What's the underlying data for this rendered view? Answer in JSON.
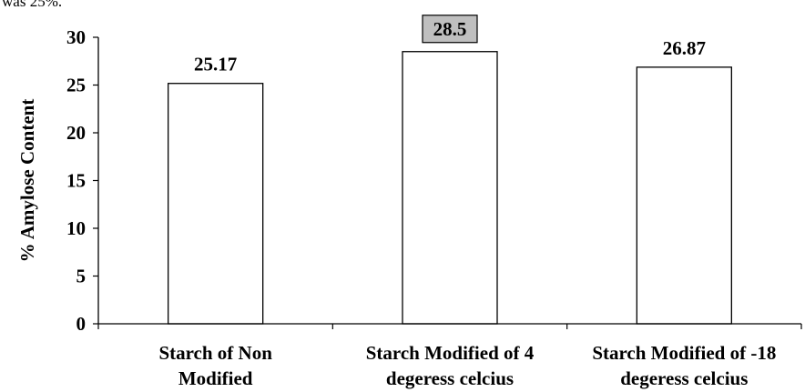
{
  "header_fragment": "was 25%.",
  "chart_data": {
    "type": "bar",
    "title": "",
    "xlabel": "",
    "ylabel": "% Amylose Content",
    "ylim": [
      0,
      30
    ],
    "yticks": [
      0,
      5,
      10,
      15,
      20,
      25,
      30
    ],
    "grid": false,
    "categories": [
      [
        "Starch of Non",
        "Modified"
      ],
      [
        "Starch Modified of 4",
        "degeress celcius"
      ],
      [
        "Starch Modified of -18",
        "degeress celcius"
      ]
    ],
    "values": [
      25.17,
      28.5,
      26.87
    ],
    "value_labels": [
      "25.17",
      "28.5",
      "26.87"
    ],
    "highlighted_label_index": 1,
    "colors": {
      "bar_fill": "#ffffff",
      "bar_stroke": "#000000",
      "highlight_label_fill": "#bfbfbf",
      "axis": "#000000"
    }
  }
}
